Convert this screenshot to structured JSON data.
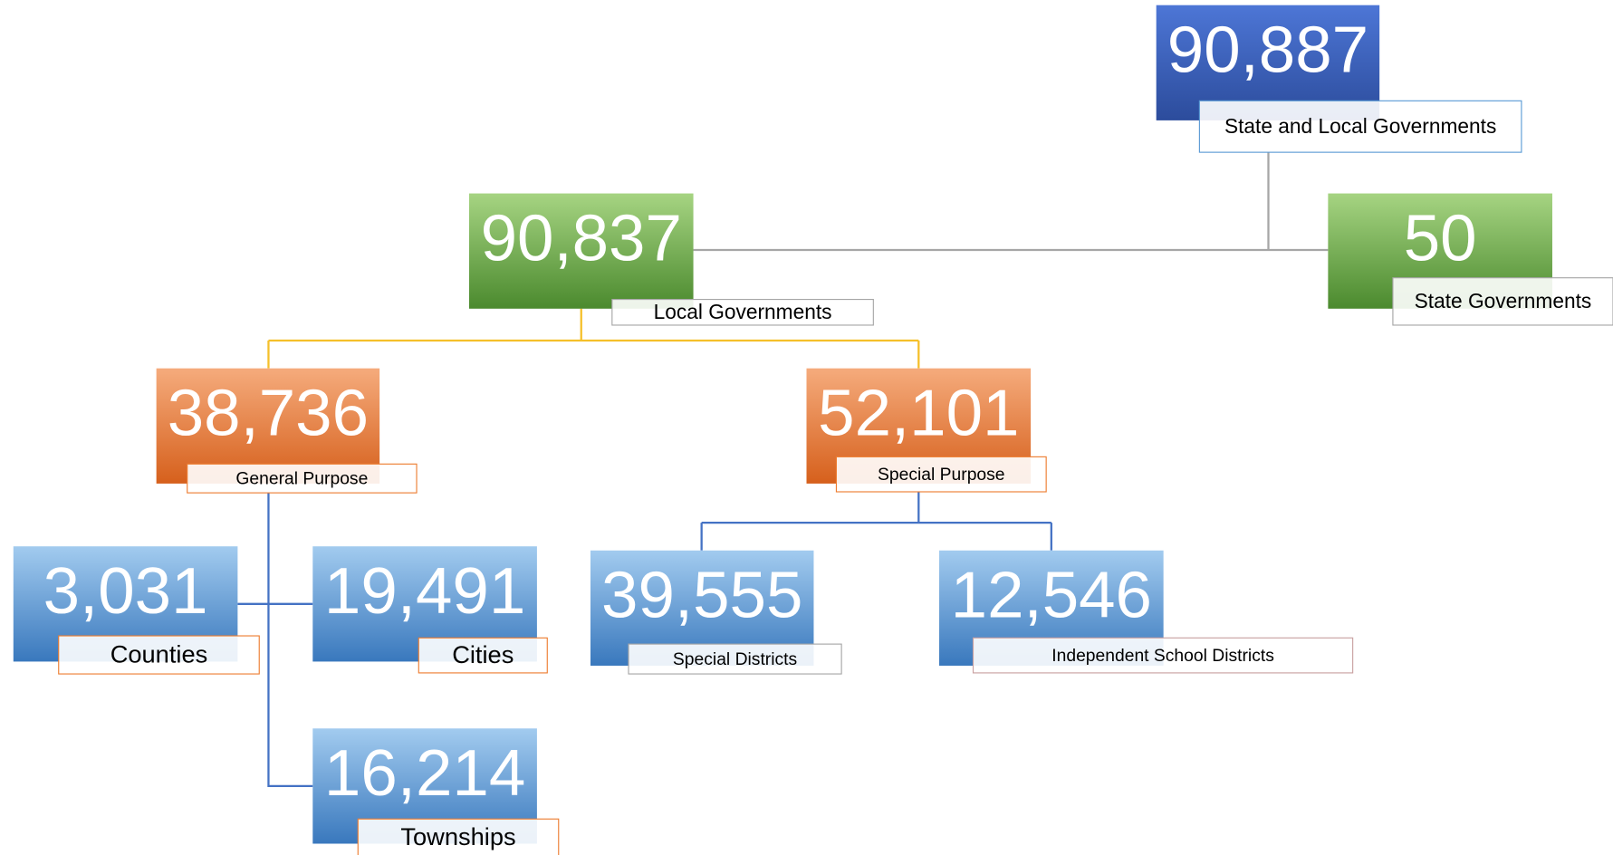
{
  "nodes": [
    {
      "value": "90,887",
      "label": "State and Local Governments"
    },
    {
      "value": "90,837",
      "label": "Local Governments"
    },
    {
      "value": "50",
      "label": "State Governments"
    },
    {
      "value": "38,736",
      "label": "General Purpose"
    },
    {
      "value": "52,101",
      "label": "Special Purpose"
    },
    {
      "value": "3,031",
      "label": "Counties"
    },
    {
      "value": "19,491",
      "label": "Cities"
    },
    {
      "value": "16,214",
      "label": "Townships"
    },
    {
      "value": "39,555",
      "label": "Special Districts"
    },
    {
      "value": "12,546",
      "label": "Independent School Districts"
    }
  ]
}
